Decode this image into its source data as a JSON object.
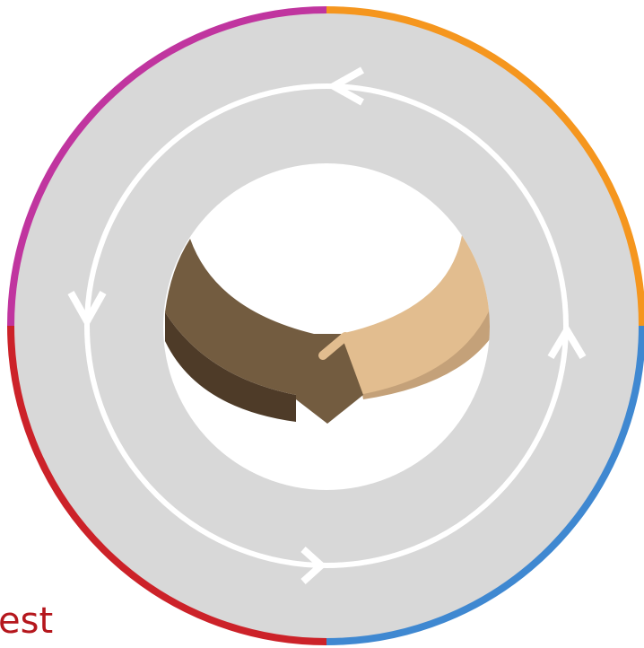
{
  "caption": {
    "text": "est"
  }
}
